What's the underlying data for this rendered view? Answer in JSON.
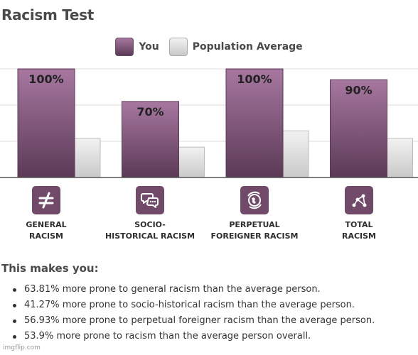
{
  "title": "Racism Test",
  "legend": {
    "you": "You",
    "avg": "Population Average"
  },
  "colors": {
    "you_top": "#a777a0",
    "you_bottom": "#5b3a56",
    "avg_top": "#f2f2f2",
    "avg_bottom": "#c9c9c9",
    "grid": "#dddddd",
    "axis": "#555555"
  },
  "chart_data": {
    "type": "bar",
    "ylim": [
      0,
      100
    ],
    "grid": true,
    "legend_position": "top-center",
    "categories": [
      "GENERAL\nRACISM",
      "SOCIO-\nHISTORICAL RACISM",
      "PERPETUAL\nFOREIGNER RACISM",
      "TOTAL\nRACISM"
    ],
    "series": [
      {
        "name": "You",
        "values": [
          100,
          70,
          100,
          90
        ],
        "labels": [
          "100%",
          "70%",
          "100%",
          "90%"
        ]
      },
      {
        "name": "Population Average",
        "values": [
          36,
          28,
          43,
          36
        ]
      }
    ]
  },
  "category_icons": [
    "not-equal-icon",
    "speech-bubbles-icon",
    "globe-icon",
    "graph-nodes-icon"
  ],
  "summary": {
    "heading": "This makes you:",
    "items": [
      "63.81% more prone to general racism than the average person.",
      "41.27% more prone to socio-historical racism than the average person.",
      "56.93% more prone to perpetual foreigner racism than the average person.",
      "53.9% more prone to racism than the average person overall."
    ]
  },
  "watermark": "imgflip.com"
}
